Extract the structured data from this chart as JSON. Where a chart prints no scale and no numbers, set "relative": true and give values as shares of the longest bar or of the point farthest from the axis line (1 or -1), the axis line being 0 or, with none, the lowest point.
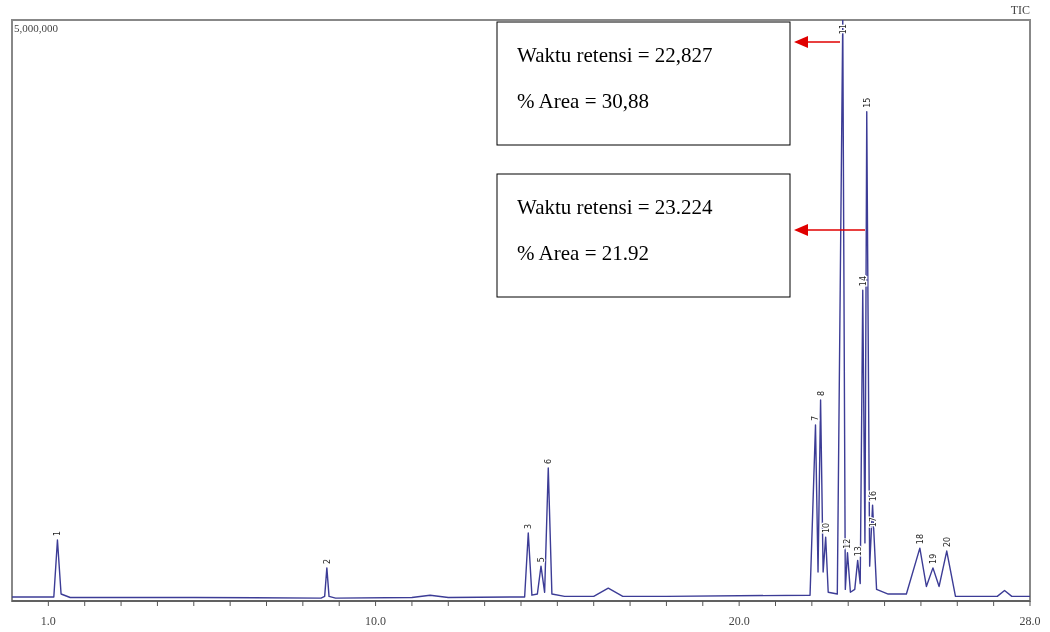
{
  "chart_data": {
    "type": "line",
    "relative": true,
    "grid": false,
    "marker": "none",
    "line_style": "solid",
    "xlim": [
      0,
      28
    ],
    "xticks": [
      {
        "value": 1,
        "label": "1.0"
      },
      {
        "value": 2,
        "label": null
      },
      {
        "value": 3,
        "label": null
      },
      {
        "value": 4,
        "label": null
      },
      {
        "value": 5,
        "label": null
      },
      {
        "value": 6,
        "label": null
      },
      {
        "value": 7,
        "label": null
      },
      {
        "value": 8,
        "label": null
      },
      {
        "value": 9,
        "label": null
      },
      {
        "value": 10,
        "label": "10.0"
      },
      {
        "value": 11,
        "label": null
      },
      {
        "value": 12,
        "label": null
      },
      {
        "value": 13,
        "label": null
      },
      {
        "value": 14,
        "label": null
      },
      {
        "value": 15,
        "label": null
      },
      {
        "value": 16,
        "label": null
      },
      {
        "value": 17,
        "label": null
      },
      {
        "value": 18,
        "label": null
      },
      {
        "value": 19,
        "label": null
      },
      {
        "value": 20,
        "label": "20.0"
      },
      {
        "value": 21,
        "label": null
      },
      {
        "value": 22,
        "label": null
      },
      {
        "value": 23,
        "label": null
      },
      {
        "value": 24,
        "label": null
      },
      {
        "value": 25,
        "label": null
      },
      {
        "value": 26,
        "label": null
      },
      {
        "value": 27,
        "label": null
      },
      {
        "value": 28,
        "label": "28.0"
      }
    ],
    "x": [
      0,
      1.15,
      1.25,
      1.35,
      1.6,
      5,
      8.5,
      8.6,
      8.66,
      8.72,
      8.9,
      11,
      11.5,
      12,
      14.1,
      14.2,
      14.3,
      14.45,
      14.55,
      14.65,
      14.75,
      14.85,
      15.2,
      16,
      16.4,
      16.8,
      18,
      21.95,
      22.1,
      22.17,
      22.24,
      22.31,
      22.38,
      22.45,
      22.7,
      22.85,
      22.92,
      22.98,
      23.06,
      23.18,
      23.26,
      23.33,
      23.4,
      23.46,
      23.51,
      23.59,
      23.67,
      23.78,
      24.1,
      24.6,
      24.97,
      25.15,
      25.33,
      25.5,
      25.71,
      25.95,
      26.5,
      27.1,
      27.3,
      27.5,
      28
    ],
    "series": [
      {
        "color": "#3c3c96",
        "values": [
          0.007,
          0.007,
          0.105,
          0.012,
          0.006,
          0.006,
          0.005,
          0.008,
          0.057,
          0.008,
          0.005,
          0.006,
          0.01,
          0.006,
          0.007,
          0.117,
          0.01,
          0.012,
          0.06,
          0.015,
          0.229,
          0.012,
          0.008,
          0.008,
          0.022,
          0.008,
          0.008,
          0.01,
          0.303,
          0.05,
          0.346,
          0.05,
          0.11,
          0.015,
          0.012,
          1.0,
          0.02,
          0.083,
          0.015,
          0.02,
          0.07,
          0.03,
          0.535,
          0.1,
          0.842,
          0.06,
          0.165,
          0.02,
          0.012,
          0.012,
          0.091,
          0.025,
          0.057,
          0.025,
          0.086,
          0.008,
          0.008,
          0.008,
          0.018,
          0.008,
          0.008
        ]
      }
    ],
    "annotations": [
      "5,000,000",
      "TIC",
      "Waktu retensi = 22,827\n% Area = 30,88",
      "Waktu retensi = 23.224\n% Area = 21.92",
      {
        "text": "1",
        "x": 1.25,
        "y": 0.105
      },
      {
        "text": "2",
        "x": 8.66,
        "y": 0.057
      },
      {
        "text": "3",
        "x": 14.2,
        "y": 0.117
      },
      {
        "text": "5",
        "x": 14.55,
        "y": 0.06
      },
      {
        "text": "6",
        "x": 14.75,
        "y": 0.229
      },
      {
        "text": "7",
        "x": 22.1,
        "y": 0.303
      },
      {
        "text": "8",
        "x": 22.24,
        "y": 0.346
      },
      {
        "text": "10",
        "x": 22.38,
        "y": 0.11
      },
      {
        "text": "11",
        "x": 22.85,
        "y": 1.0
      },
      {
        "text": "12",
        "x": 22.98,
        "y": 0.083
      },
      {
        "text": "13",
        "x": 23.26,
        "y": 0.07
      },
      {
        "text": "14",
        "x": 23.4,
        "y": 0.535
      },
      {
        "text": "15",
        "x": 23.51,
        "y": 0.842
      },
      {
        "text": "17",
        "x": 23.67,
        "y": 0.12
      },
      {
        "text": "16",
        "x": 23.67,
        "y": 0.165
      },
      {
        "text": "18",
        "x": 24.97,
        "y": 0.091
      },
      {
        "text": "19",
        "x": 25.33,
        "y": 0.057
      },
      {
        "text": "20",
        "x": 25.71,
        "y": 0.086
      }
    ]
  }
}
